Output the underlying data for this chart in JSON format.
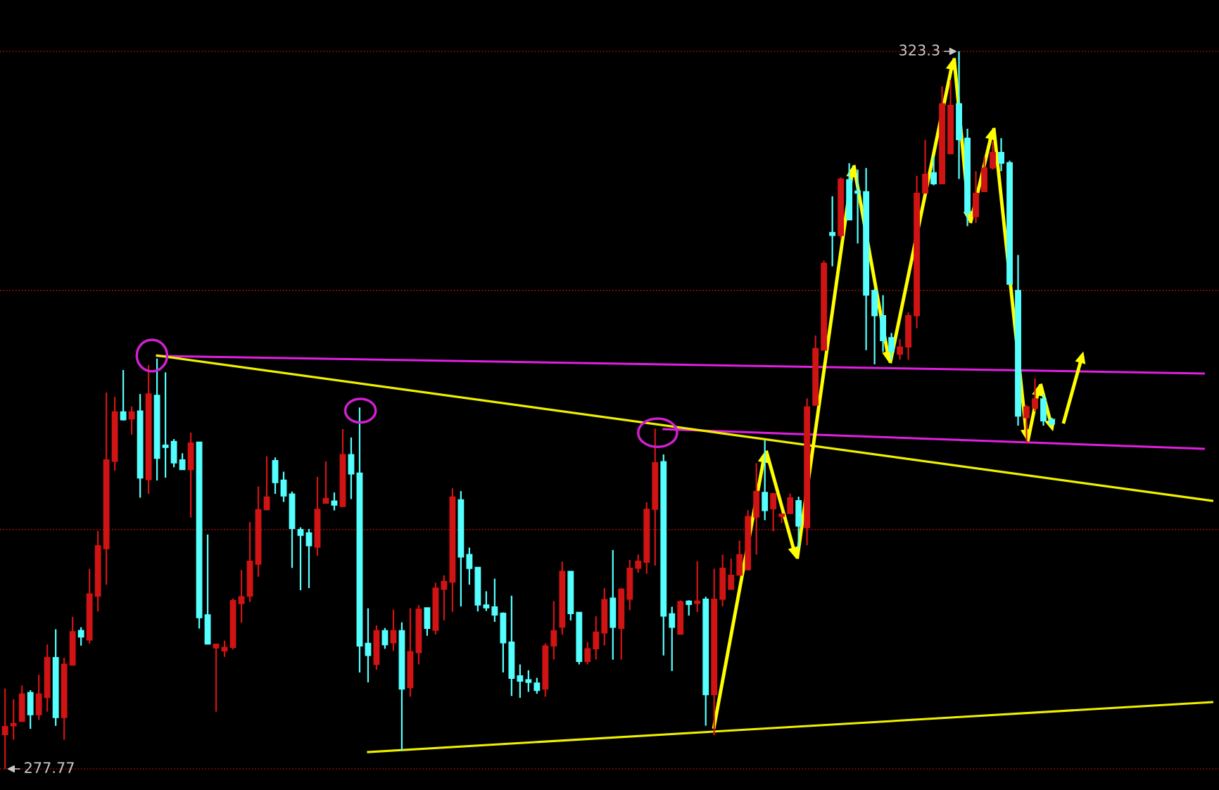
{
  "chart_data": {
    "type": "candlestick",
    "categories": [
      null,
      null,
      null,
      null,
      null,
      null,
      null,
      null,
      null,
      null,
      null,
      null,
      null,
      null,
      null,
      null,
      null,
      null,
      null,
      null,
      null,
      null,
      null,
      null,
      null,
      null,
      null,
      null,
      null,
      null,
      null,
      null,
      null,
      null,
      null,
      null,
      null,
      null,
      null,
      null,
      null,
      null,
      null,
      null,
      null,
      null,
      null,
      null,
      null,
      null,
      null,
      null,
      null,
      null,
      null,
      null,
      null,
      null,
      null,
      null,
      null,
      null,
      null,
      null,
      null,
      null,
      null,
      null,
      null,
      null,
      null,
      null,
      null,
      null,
      null,
      null,
      null,
      null,
      null,
      null,
      null,
      null,
      null,
      null,
      null,
      null,
      null,
      null,
      null,
      null,
      null,
      null,
      null,
      null,
      null,
      null,
      null,
      null,
      null,
      null,
      null,
      null,
      null,
      null,
      null,
      null,
      null,
      null,
      null,
      null,
      null,
      null,
      null,
      null,
      null,
      null,
      null,
      null,
      null,
      null,
      null,
      null,
      null,
      null,
      null,
      null,
      null,
      null,
      null,
      null,
      null,
      null,
      null,
      null,
      null,
      null,
      null,
      null,
      null,
      null,
      null,
      null,
      null,
      null
    ],
    "ohlc": [
      [
        279.94,
        282.87,
        277.77,
        280.46
      ],
      [
        280.5,
        282.19,
        279.62,
        280.65
      ],
      [
        280.78,
        283.06,
        280.78,
        282.53
      ],
      [
        282.62,
        282.76,
        280.31,
        281.21
      ],
      [
        281.21,
        283.75,
        280.88,
        282.53
      ],
      [
        282.3,
        285.67,
        281.4,
        284.84
      ],
      [
        284.84,
        286.63,
        280.5,
        281.03
      ],
      [
        281.03,
        284.82,
        279.62,
        284.41
      ],
      [
        284.35,
        287.42,
        284.35,
        286.48
      ],
      [
        286.55,
        286.76,
        285.59,
        286.14
      ],
      [
        285.95,
        290.46,
        285.73,
        288.88
      ],
      [
        288.73,
        292.87,
        287.76,
        291.93
      ],
      [
        291.74,
        301.65,
        289.45,
        297.38
      ],
      [
        297.29,
        301.37,
        296.69,
        300.43
      ],
      [
        300.43,
        303.08,
        299.88,
        299.92
      ],
      [
        299.98,
        300.77,
        298.98,
        300.43
      ],
      [
        300.48,
        301.56,
        294.98,
        296.22
      ],
      [
        296.12,
        303.4,
        295.22,
        301.56
      ],
      [
        301.48,
        303.81,
        296.07,
        297.48
      ],
      [
        298.32,
        302.93,
        296.25,
        298.17
      ],
      [
        298.55,
        298.7,
        296.91,
        297.19
      ],
      [
        297.38,
        297.8,
        296.76,
        296.76
      ],
      [
        296.76,
        299.11,
        293.72,
        298.45
      ],
      [
        298.51,
        298.51,
        286.67,
        287.36
      ],
      [
        287.55,
        292.64,
        285.69,
        285.69
      ],
      [
        285.44,
        285.69,
        281.4,
        285.69
      ],
      [
        285.26,
        285.91,
        284.88,
        285.48
      ],
      [
        285.48,
        288.58,
        285.35,
        288.45
      ],
      [
        288.26,
        290.39,
        287.04,
        288.7
      ],
      [
        288.73,
        293.43,
        288.36,
        290.95
      ],
      [
        290.76,
        295.69,
        289.96,
        294.22
      ],
      [
        294.22,
        297.61,
        294.19,
        295.03
      ],
      [
        297.34,
        297.53,
        295.22,
        295.93
      ],
      [
        296.1,
        296.63,
        294.71,
        295.09
      ],
      [
        295.22,
        295.37,
        290.52,
        293.02
      ],
      [
        292.96,
        293.1,
        289.11,
        292.59
      ],
      [
        292.75,
        293.0,
        289.24,
        291.93
      ],
      [
        291.84,
        296.3,
        291.29,
        294.24
      ],
      [
        294.63,
        297.28,
        294.63,
        294.94
      ],
      [
        294.77,
        295.31,
        294.17,
        294.51
      ],
      [
        294.42,
        299.33,
        294.42,
        297.71
      ],
      [
        297.71,
        298.8,
        294.89,
        296.48
      ],
      [
        296.54,
        300.7,
        283.89,
        285.57
      ],
      [
        285.74,
        287.96,
        283.26,
        284.97
      ],
      [
        284.4,
        286.88,
        284.06,
        286.54
      ],
      [
        286.54,
        286.71,
        285.39,
        285.65
      ],
      [
        285.77,
        287.87,
        285.26,
        286.54
      ],
      [
        286.54,
        287.07,
        278.93,
        282.83
      ],
      [
        282.92,
        287.96,
        282.35,
        285.22
      ],
      [
        285.14,
        288.16,
        284.4,
        287.91
      ],
      [
        287.99,
        287.99,
        286.22,
        286.68
      ],
      [
        286.56,
        289.58,
        286.3,
        289.24
      ],
      [
        289.16,
        290.05,
        287.19,
        289.67
      ],
      [
        289.62,
        295.57,
        287.74,
        295.02
      ],
      [
        294.85,
        295.4,
        288.08,
        291.21
      ],
      [
        291.38,
        291.81,
        289.46,
        290.49
      ],
      [
        290.56,
        290.56,
        287.76,
        288.17
      ],
      [
        288.17,
        289.04,
        287.79,
        287.99
      ],
      [
        288.05,
        289.84,
        287.1,
        287.53
      ],
      [
        287.65,
        287.7,
        283.89,
        285.77
      ],
      [
        285.82,
        288.76,
        282.4,
        283.51
      ],
      [
        283.68,
        284.4,
        282.28,
        283.34
      ],
      [
        283.43,
        284.03,
        282.66,
        283.26
      ],
      [
        283.22,
        283.55,
        282.54,
        282.74
      ],
      [
        282.83,
        285.74,
        282.35,
        285.57
      ],
      [
        285.57,
        288.42,
        284.71,
        286.54
      ],
      [
        286.76,
        290.92,
        286.28,
        290.3
      ],
      [
        290.3,
        290.3,
        287.19,
        287.62
      ],
      [
        287.7,
        287.7,
        284.4,
        284.59
      ],
      [
        284.59,
        285.82,
        284.4,
        285.39
      ],
      [
        285.39,
        287.45,
        284.71,
        286.46
      ],
      [
        286.39,
        289.24,
        285.6,
        288.52
      ],
      [
        288.61,
        291.66,
        284.7,
        286.75
      ],
      [
        286.68,
        289.24,
        284.7,
        289.18
      ],
      [
        288.54,
        291.03,
        287.84,
        290.5
      ],
      [
        290.5,
        291.37,
        290.22,
        290.95
      ],
      [
        290.88,
        294.69,
        290.15,
        294.24
      ],
      [
        294.24,
        299.36,
        290.67,
        297.2
      ],
      [
        297.27,
        297.72,
        284.97,
        287.47
      ],
      [
        287.62,
        288.06,
        283.98,
        286.75
      ],
      [
        286.31,
        288.47,
        286.31,
        288.39
      ],
      [
        288.42,
        288.47,
        287.5,
        288.2
      ],
      [
        288.27,
        290.95,
        287.72,
        288.42
      ],
      [
        288.54,
        288.69,
        280.51,
        282.48
      ],
      [
        282.48,
        290.47,
        279.91,
        288.54
      ],
      [
        288.54,
        291.37,
        288.09,
        290.5
      ],
      [
        289.16,
        291.11,
        289.16,
        290.06
      ],
      [
        290.06,
        292.26,
        290.06,
        291.37
      ],
      [
        290.4,
        294.19,
        290.4,
        293.79
      ],
      [
        293.75,
        297.17,
        291.37,
        295.38
      ],
      [
        295.31,
        298.61,
        293.55,
        294.16
      ],
      [
        294.27,
        295.24,
        292.85,
        295.24
      ],
      [
        293.79,
        293.94,
        293.38,
        293.94
      ],
      [
        293.97,
        295.24,
        293.97,
        294.97
      ],
      [
        294.79,
        295.04,
        291.81,
        293.18
      ],
      [
        293.08,
        301.29,
        291.96,
        300.74
      ],
      [
        300.85,
        305.27,
        300.85,
        304.44
      ],
      [
        304.34,
        310.02,
        304.34,
        309.86
      ],
      [
        311.81,
        314.1,
        309.66,
        311.61
      ],
      [
        311.61,
        315.3,
        311.41,
        315.2
      ],
      [
        315.16,
        316.2,
        312.61,
        312.61
      ],
      [
        314.44,
        315.8,
        311.11,
        314.3
      ],
      [
        314.4,
        315.9,
        304.34,
        307.83
      ],
      [
        308.13,
        308.23,
        303.44,
        306.53
      ],
      [
        306.53,
        307.83,
        304.24,
        304.94
      ],
      [
        305.14,
        305.43,
        303.74,
        304.24
      ],
      [
        304.08,
        305.04,
        303.74,
        304.54
      ],
      [
        304.54,
        306.73,
        303.74,
        306.53
      ],
      [
        306.53,
        315.4,
        305.73,
        314.3
      ],
      [
        314.3,
        317.69,
        314.3,
        315.5
      ],
      [
        315.6,
        316.6,
        314.8,
        314.9
      ],
      [
        314.9,
        321.08,
        314.9,
        319.98
      ],
      [
        316.8,
        321.48,
        316.8,
        319.88
      ],
      [
        319.98,
        323.3,
        315.2,
        317.69
      ],
      [
        317.79,
        318.39,
        312.21,
        313.01
      ],
      [
        312.81,
        315.7,
        312.41,
        314.3
      ],
      [
        314.4,
        316.6,
        314.4,
        315.9
      ],
      [
        315.9,
        317.59,
        315.8,
        316.89
      ],
      [
        316.89,
        317.79,
        315.7,
        316.2
      ],
      [
        316.24,
        316.36,
        308.52,
        308.52
      ],
      [
        308.13,
        310.38,
        299.55,
        300.15
      ],
      [
        300.05,
        300.85,
        298.46,
        300.75
      ],
      [
        300.65,
        302.55,
        300.45,
        301.25
      ],
      [
        301.25,
        301.55,
        299.55,
        299.85
      ],
      [
        299.95,
        300.05,
        299.55,
        299.65
      ],
      null,
      null,
      null,
      null,
      null,
      null,
      null,
      null,
      null,
      null,
      null,
      null,
      null,
      null,
      null,
      null,
      null,
      null,
      null
    ],
    "colors": [
      "#d01414",
      "#d01414",
      "#d01414",
      "#55ffff",
      "#d01414",
      "#d01414",
      "#55ffff",
      "#d01414",
      "#d01414",
      "#55ffff",
      "#d01414",
      "#d01414",
      "#d01414",
      "#d01414",
      "#55ffff",
      "#d01414",
      "#55ffff",
      "#d01414",
      "#55ffff",
      "#55ffff",
      "#55ffff",
      "#55ffff",
      "#d01414",
      "#55ffff",
      "#55ffff",
      "#d01414",
      "#d01414",
      "#d01414",
      "#d01414",
      "#d01414",
      "#d01414",
      "#d01414",
      "#55ffff",
      "#55ffff",
      "#55ffff",
      "#55ffff",
      "#55ffff",
      "#d01414",
      "#d01414",
      "#55ffff",
      "#d01414",
      "#55ffff",
      "#55ffff",
      "#55ffff",
      "#d01414",
      "#55ffff",
      "#d01414",
      "#55ffff",
      "#d01414",
      "#d01414",
      "#55ffff",
      "#d01414",
      "#d01414",
      "#d01414",
      "#55ffff",
      "#55ffff",
      "#55ffff",
      "#55ffff",
      "#55ffff",
      "#55ffff",
      "#55ffff",
      "#55ffff",
      "#55ffff",
      "#55ffff",
      "#d01414",
      "#d01414",
      "#d01414",
      "#55ffff",
      "#55ffff",
      "#d01414",
      "#d01414",
      "#d01414",
      "#55ffff",
      "#d01414",
      "#d01414",
      "#d01414",
      "#d01414",
      "#d01414",
      "#55ffff",
      "#55ffff",
      "#d01414",
      "#55ffff",
      "#d01414",
      "#55ffff",
      "#d01414",
      "#d01414",
      "#d01414",
      "#d01414",
      "#d01414",
      "#d01414",
      "#55ffff",
      "#d01414",
      "#d01414",
      "#d01414",
      "#55ffff",
      "#d01414",
      "#d01414",
      "#d01414",
      "#55ffff",
      "#d01414",
      "#55ffff",
      "#55ffff",
      "#55ffff",
      "#55ffff",
      "#55ffff",
      "#55ffff",
      "#d01414",
      "#d01414",
      "#d01414",
      "#d01414",
      "#55ffff",
      "#d01414",
      "#d01414",
      "#55ffff",
      "#55ffff",
      "#d01414",
      "#d01414",
      "#d01414",
      "#55ffff",
      "#55ffff",
      "#55ffff",
      "#d01414",
      "#d01414",
      "#55ffff",
      "#55ffff",
      null,
      null,
      null,
      null,
      null,
      null,
      null,
      null,
      null,
      null,
      null,
      null,
      null,
      null,
      null,
      null,
      null,
      null,
      null
    ],
    "series": [
      {
        "type": "line",
        "color": "#e020e0",
        "values": [
          null,
          null,
          null,
          null,
          null,
          null,
          null,
          null,
          null,
          null,
          null,
          null,
          null,
          null,
          null,
          null,
          null,
          null,
          303.97,
          null,
          null,
          null,
          null,
          null,
          null,
          null,
          null,
          null,
          null,
          null,
          null,
          null,
          null,
          null,
          null,
          null,
          null,
          null,
          null,
          null,
          null,
          null,
          null,
          null,
          null,
          null,
          null,
          null,
          null,
          null,
          null,
          null,
          null,
          null,
          null,
          null,
          null,
          null,
          null,
          null,
          null,
          null,
          null,
          null,
          null,
          null,
          null,
          null,
          null,
          null,
          null,
          null,
          null,
          null,
          null,
          null,
          null,
          null,
          null,
          null,
          null,
          null,
          null,
          null,
          null,
          null,
          null,
          null,
          null,
          null,
          null,
          null,
          null,
          null,
          null,
          null,
          null,
          null,
          null,
          null,
          null,
          null,
          null,
          null,
          null,
          null,
          null,
          null,
          null,
          null,
          null,
          null,
          null,
          null,
          null,
          null,
          null,
          null,
          null,
          null,
          null,
          null,
          null,
          null,
          null,
          null,
          null,
          null,
          null,
          null,
          null,
          null,
          null,
          null,
          null,
          null,
          null,
          null,
          null,
          null,
          null,
          null,
          302.86,
          null
        ]
      },
      {
        "type": "line",
        "color": "#e020e0",
        "values": [
          null,
          null,
          null,
          null,
          null,
          null,
          null,
          null,
          null,
          null,
          null,
          null,
          null,
          null,
          null,
          null,
          null,
          null,
          null,
          null,
          null,
          null,
          null,
          null,
          null,
          null,
          null,
          null,
          null,
          null,
          null,
          null,
          null,
          null,
          null,
          null,
          null,
          null,
          null,
          null,
          null,
          null,
          null,
          null,
          null,
          null,
          null,
          null,
          null,
          null,
          null,
          null,
          null,
          null,
          null,
          null,
          null,
          null,
          null,
          null,
          null,
          null,
          null,
          null,
          null,
          null,
          null,
          null,
          null,
          null,
          null,
          null,
          null,
          null,
          null,
          null,
          null,
          null,
          299.33,
          null,
          null,
          null,
          null,
          null,
          null,
          null,
          null,
          null,
          null,
          null,
          null,
          null,
          null,
          null,
          null,
          null,
          null,
          null,
          null,
          null,
          null,
          null,
          null,
          null,
          null,
          null,
          null,
          null,
          null,
          null,
          null,
          null,
          null,
          null,
          null,
          null,
          null,
          null,
          null,
          null,
          null,
          null,
          null,
          null,
          null,
          null,
          null,
          null,
          null,
          null,
          null,
          null,
          null,
          null,
          null,
          null,
          null,
          null,
          null,
          null,
          null,
          null,
          298.08,
          null
        ]
      },
      {
        "type": "line",
        "color": "#f0f000",
        "values": [
          null,
          null,
          null,
          null,
          null,
          null,
          null,
          null,
          null,
          null,
          null,
          null,
          null,
          null,
          null,
          null,
          null,
          null,
          304.0,
          null,
          null,
          null,
          null,
          null,
          null,
          null,
          null,
          null,
          null,
          null,
          null,
          null,
          null,
          null,
          null,
          null,
          null,
          null,
          null,
          null,
          null,
          null,
          null,
          null,
          null,
          null,
          null,
          null,
          null,
          null,
          null,
          null,
          null,
          null,
          null,
          null,
          null,
          null,
          null,
          null,
          null,
          null,
          null,
          null,
          null,
          null,
          null,
          null,
          null,
          null,
          null,
          null,
          null,
          null,
          null,
          null,
          null,
          null,
          null,
          null,
          null,
          null,
          null,
          null,
          null,
          null,
          null,
          null,
          null,
          null,
          null,
          null,
          null,
          null,
          null,
          null,
          null,
          null,
          null,
          null,
          null,
          null,
          null,
          null,
          null,
          null,
          null,
          null,
          null,
          null,
          null,
          null,
          null,
          null,
          null,
          null,
          null,
          null,
          null,
          null,
          null,
          null,
          null,
          null,
          null,
          null,
          null,
          null,
          null,
          null,
          null,
          null,
          null,
          null,
          null,
          null,
          null,
          null,
          null,
          null,
          null,
          null,
          null,
          294.78
        ]
      },
      {
        "type": "line",
        "color": "#f0f000",
        "values": [
          null,
          null,
          null,
          null,
          null,
          null,
          null,
          null,
          null,
          null,
          null,
          null,
          null,
          null,
          null,
          null,
          null,
          null,
          null,
          null,
          null,
          null,
          null,
          null,
          null,
          null,
          null,
          null,
          null,
          null,
          null,
          null,
          null,
          null,
          null,
          null,
          null,
          null,
          null,
          null,
          null,
          null,
          null,
          278.84,
          null,
          null,
          null,
          null,
          null,
          null,
          null,
          null,
          null,
          null,
          null,
          null,
          null,
          null,
          null,
          null,
          null,
          null,
          null,
          null,
          null,
          null,
          null,
          null,
          null,
          null,
          null,
          null,
          null,
          null,
          null,
          null,
          null,
          null,
          null,
          null,
          null,
          null,
          null,
          null,
          null,
          null,
          null,
          null,
          null,
          null,
          null,
          null,
          null,
          null,
          null,
          null,
          null,
          null,
          null,
          null,
          null,
          null,
          null,
          null,
          null,
          null,
          null,
          null,
          null,
          null,
          null,
          null,
          null,
          null,
          null,
          null,
          null,
          null,
          null,
          null,
          null,
          null,
          null,
          null,
          null,
          null,
          null,
          null,
          null,
          null,
          null,
          null,
          null,
          null,
          null,
          null,
          null,
          null,
          null,
          null,
          null,
          null,
          null,
          282.01
        ]
      }
    ],
    "ref_lines": [
      {
        "axis": "y",
        "value": 277.77,
        "color": "#a01010",
        "line_style": "dotted"
      },
      {
        "axis": "y",
        "value": 292.95,
        "color": "#a01010",
        "line_style": "dotted"
      },
      {
        "axis": "y",
        "value": 308.13,
        "color": "#a01010",
        "line_style": "dotted"
      },
      {
        "axis": "y",
        "value": 323.3,
        "color": "#a01010",
        "line_style": "dotted"
      }
    ],
    "annotations": [
      {
        "text": "277.77",
        "y": 277.77
      },
      {
        "text": "323.3",
        "y": 323.3
      }
    ]
  }
}
